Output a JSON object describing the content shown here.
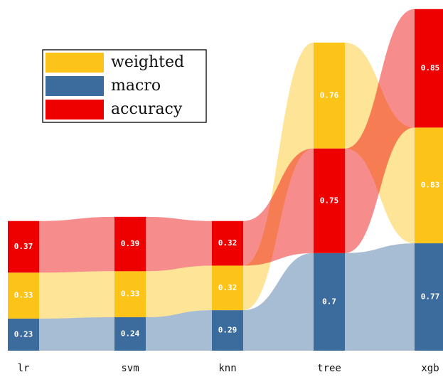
{
  "chart_data": {
    "type": "ranked-stack",
    "categories": [
      "lr",
      "svm",
      "knn",
      "tree",
      "xgb"
    ],
    "series": [
      {
        "name": "weighted",
        "color": "#fcc419",
        "values": [
          0.33,
          0.33,
          0.32,
          0.76,
          0.83
        ]
      },
      {
        "name": "macro",
        "color": "#3c6c9e",
        "values": [
          0.23,
          0.24,
          0.29,
          0.7,
          0.77
        ]
      },
      {
        "name": "accuracy",
        "color": "#ee0000",
        "values": [
          0.37,
          0.39,
          0.32,
          0.75,
          0.85
        ]
      }
    ]
  }
}
